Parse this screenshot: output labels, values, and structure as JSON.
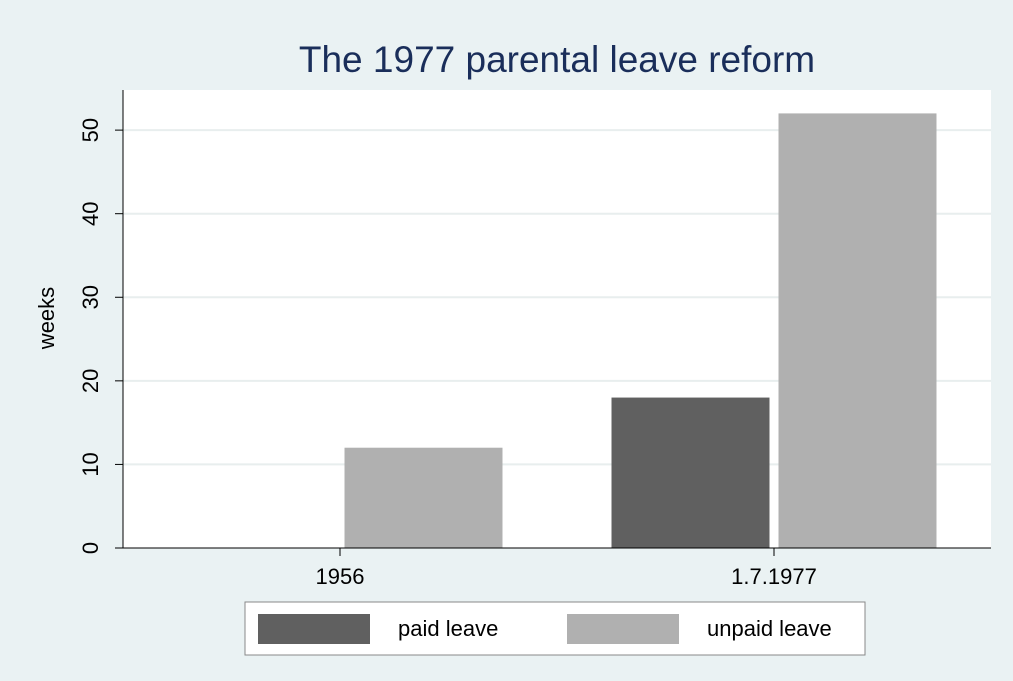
{
  "chart_data": {
    "type": "bar",
    "title": "The 1977 parental leave reform",
    "ylabel": "weeks",
    "categories": [
      "1956",
      "1.7.1977"
    ],
    "series": [
      {
        "name": "paid leave",
        "color": "#606060",
        "values": [
          0,
          18
        ]
      },
      {
        "name": "unpaid leave",
        "color": "#b0b0b0",
        "values": [
          12,
          52
        ]
      }
    ],
    "ylim": [
      0,
      54.8
    ],
    "yticks": [
      0,
      10,
      20,
      30,
      40,
      50
    ],
    "grid": true,
    "legend": "bottom"
  }
}
